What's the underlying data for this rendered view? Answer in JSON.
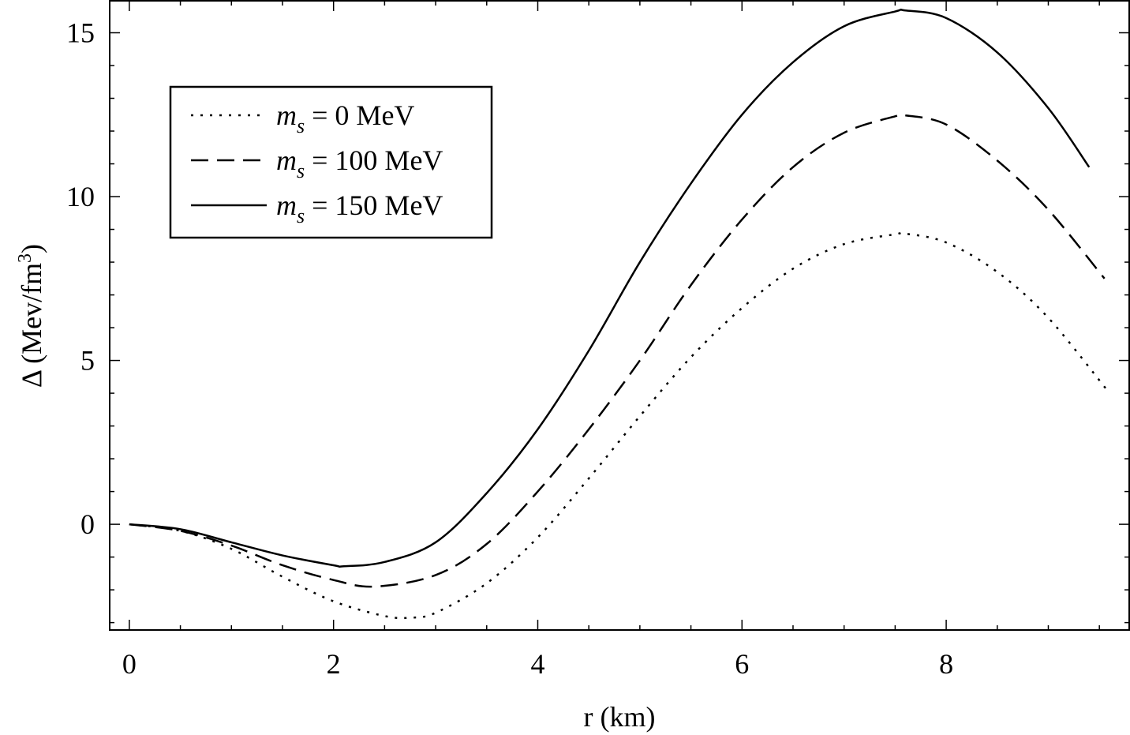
{
  "chart_data": {
    "type": "line",
    "title": "",
    "xlabel": "r (km)",
    "ylabel": "Δ (Mev/fm3)",
    "ylabel_parts": {
      "prefix": "Δ (Mev/fm",
      "sup": "3",
      "suffix": ")"
    },
    "xlim": [
      -0.2,
      9.8
    ],
    "ylim": [
      -3.25,
      16
    ],
    "xticks": [
      0,
      2,
      4,
      6,
      8
    ],
    "yticks": [
      0,
      5,
      10,
      15
    ],
    "grid": false,
    "legend_position": "top-left",
    "series": [
      {
        "name": "m_s = 0 MeV",
        "label_parts": {
          "symbol": "m",
          "sub": "s",
          "rest": " = 0 MeV"
        },
        "style": "dotted",
        "x": [
          0,
          0.5,
          1,
          1.5,
          2,
          2.5,
          2.75,
          3,
          3.5,
          4,
          4.5,
          5,
          5.5,
          6,
          6.5,
          7,
          7.5,
          7.6,
          8,
          8.5,
          9,
          9.6
        ],
        "y": [
          0,
          -0.2,
          -0.75,
          -1.6,
          -2.35,
          -2.8,
          -2.85,
          -2.7,
          -1.8,
          -0.4,
          1.4,
          3.3,
          5.1,
          6.6,
          7.8,
          8.55,
          8.85,
          8.87,
          8.6,
          7.7,
          6.3,
          4.0
        ]
      },
      {
        "name": "m_s = 100 MeV",
        "label_parts": {
          "symbol": "m",
          "sub": "s",
          "rest": " = 100 MeV"
        },
        "style": "dashed",
        "x": [
          0,
          0.5,
          1,
          1.5,
          2,
          2.4,
          3,
          3.5,
          4,
          4.5,
          5,
          5.5,
          6,
          6.5,
          7,
          7.5,
          7.6,
          8,
          8.5,
          9,
          9.55
        ],
        "y": [
          0,
          -0.2,
          -0.65,
          -1.25,
          -1.7,
          -1.9,
          -1.55,
          -0.6,
          1.0,
          2.9,
          5.0,
          7.3,
          9.3,
          10.9,
          11.95,
          12.45,
          12.48,
          12.2,
          11.1,
          9.6,
          7.5
        ]
      },
      {
        "name": "m_s = 150 MeV",
        "label_parts": {
          "symbol": "m",
          "sub": "s",
          "rest": " = 150 MeV"
        },
        "style": "solid",
        "x": [
          0,
          0.5,
          1,
          1.5,
          2,
          2.1,
          2.5,
          3,
          3.5,
          4,
          4.5,
          5,
          5.5,
          6,
          6.5,
          7,
          7.5,
          7.6,
          8,
          8.5,
          9,
          9.4
        ],
        "y": [
          0,
          -0.15,
          -0.55,
          -0.95,
          -1.25,
          -1.28,
          -1.15,
          -0.55,
          0.95,
          2.9,
          5.3,
          8.0,
          10.4,
          12.5,
          14.1,
          15.2,
          15.65,
          15.68,
          15.45,
          14.4,
          12.7,
          10.9
        ]
      }
    ]
  }
}
